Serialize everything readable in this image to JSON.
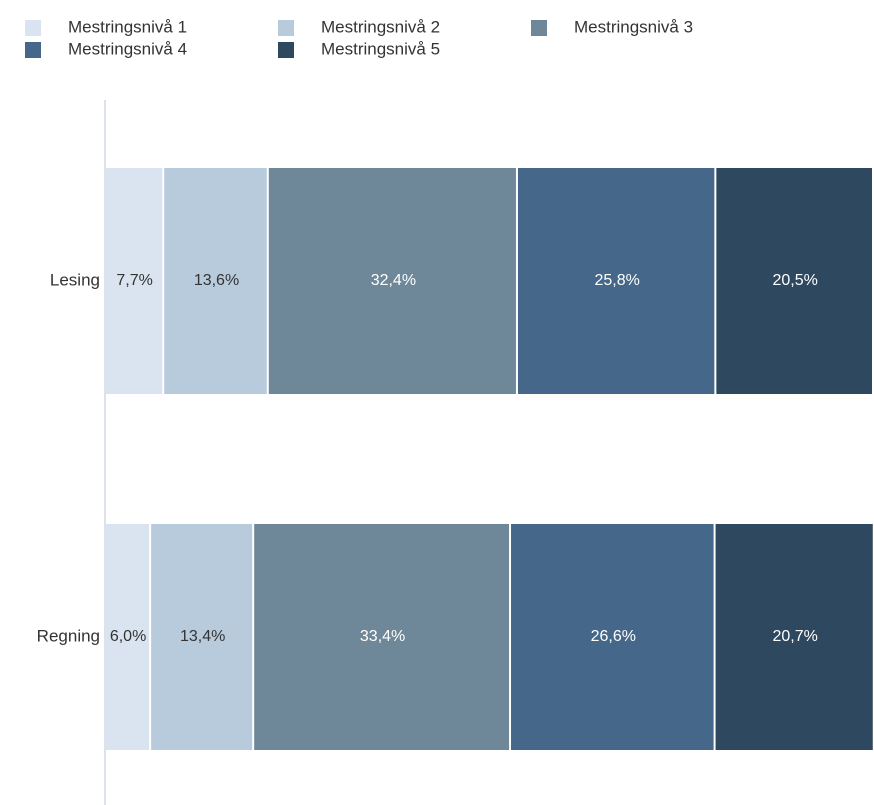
{
  "chart_data": {
    "type": "bar",
    "orientation": "horizontal",
    "stacked": true,
    "categories": [
      "Lesing",
      "Regning"
    ],
    "xlim": [
      0,
      100
    ],
    "legend": "top-left",
    "series": [
      {
        "name": "Mestringsnivå 1",
        "color": "#d9e4f0",
        "values": [
          7.7,
          6.0
        ],
        "value_labels": [
          "7,7%",
          "6,0%"
        ]
      },
      {
        "name": "Mestringsnivå 2",
        "color": "#b7cbdd",
        "values": [
          13.6,
          13.4
        ],
        "value_labels": [
          "13,6%",
          "13,4%"
        ]
      },
      {
        "name": "Mestringsnivå 3",
        "color": "#6e8799",
        "values": [
          32.4,
          33.4
        ],
        "value_labels": [
          "32,4%",
          "33,4%"
        ]
      },
      {
        "name": "Mestringsnivå 4",
        "color": "#44678a",
        "values": [
          25.8,
          26.6
        ],
        "value_labels": [
          "25,8%",
          "26,6%"
        ]
      },
      {
        "name": "Mestringsnivå 5",
        "color": "#2e4860",
        "values": [
          20.5,
          20.7
        ],
        "value_labels": [
          "20,5%",
          "20,7%"
        ]
      }
    ]
  }
}
